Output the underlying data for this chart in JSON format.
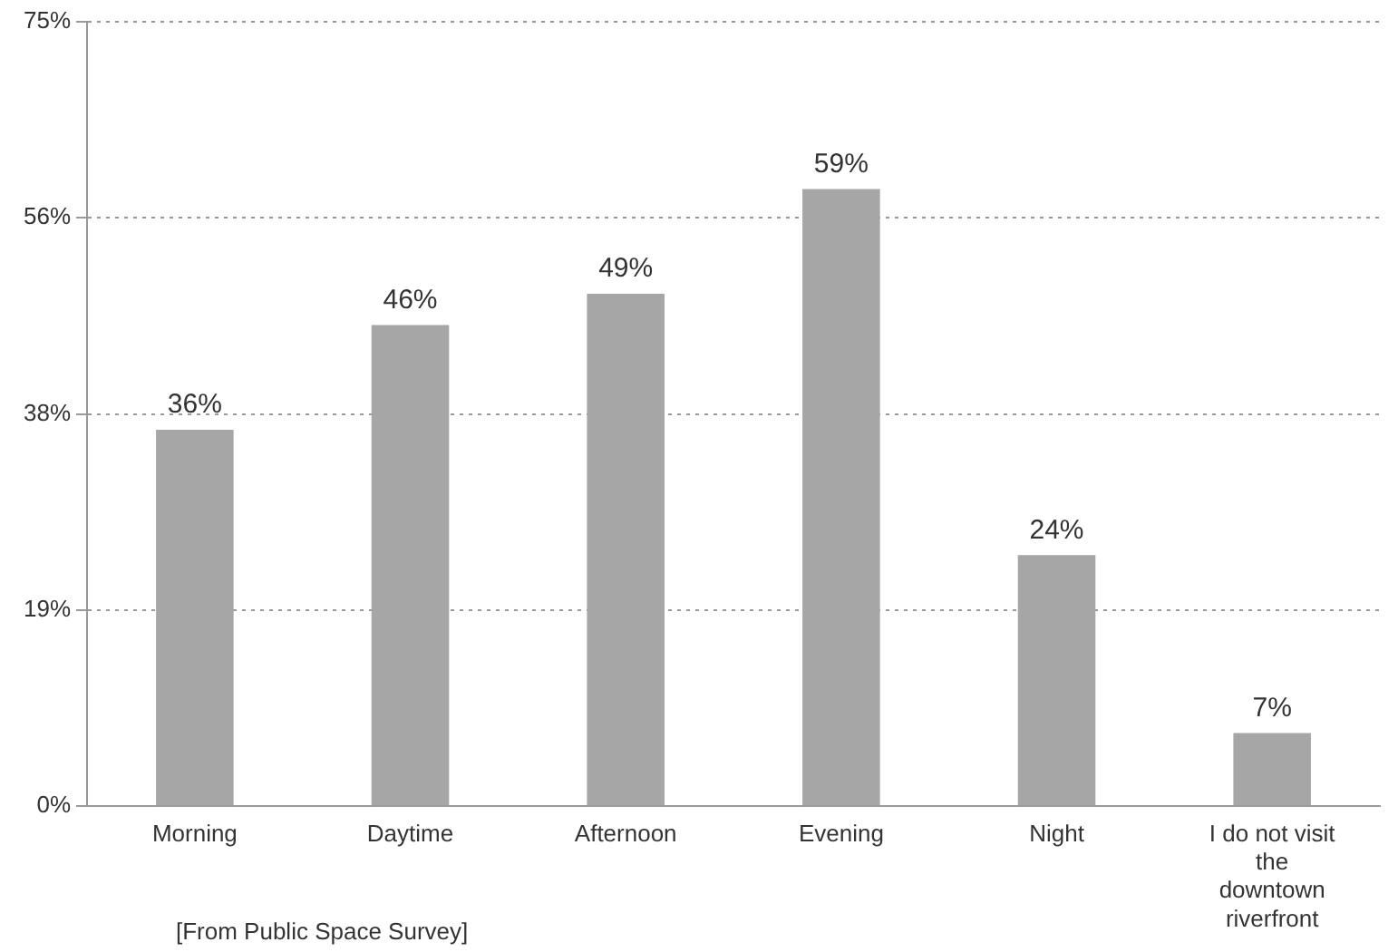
{
  "chart_data": {
    "type": "bar",
    "categories": [
      "Morning",
      "Daytime",
      "Afternoon",
      "Evening",
      "Night",
      "I do not visit the downtown riverfront"
    ],
    "values": [
      36,
      46,
      49,
      59,
      24,
      7
    ],
    "value_labels": [
      "36%",
      "46%",
      "49%",
      "59%",
      "24%",
      "7%"
    ],
    "color": "#a6a6a6",
    "ylim": [
      0,
      75
    ],
    "yticks": [
      {
        "value": 0,
        "label": "0%"
      },
      {
        "value": 18.75,
        "label": "19%"
      },
      {
        "value": 37.5,
        "label": "38%"
      },
      {
        "value": 56.25,
        "label": "56%"
      },
      {
        "value": 75,
        "label": "75%"
      }
    ],
    "grid": "y",
    "legend": false,
    "annotations": [
      "[From Public Space Survey]"
    ]
  }
}
